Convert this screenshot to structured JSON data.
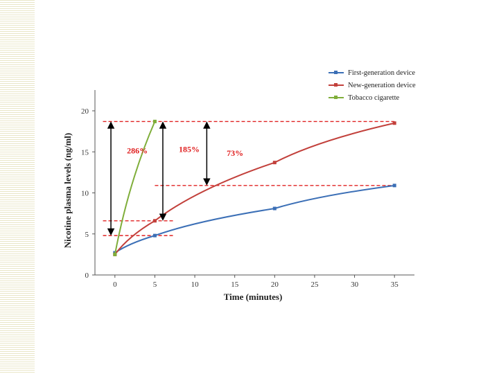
{
  "colors": {
    "first": "#3b6fb6",
    "new": "#c2403b",
    "tobacco": "#7fae3a",
    "annotation": "#e02020",
    "reference": "#e02020",
    "arrow": "#000000",
    "stripe": "#e9e6c7"
  },
  "chart_data": {
    "type": "line",
    "xlabel": "Time (minutes)",
    "ylabel": "Nicotine plasma levels (ng/ml)",
    "xlim": [
      -2.5,
      37.5
    ],
    "ylim": [
      0,
      20
    ],
    "xticks": [
      0,
      5,
      10,
      15,
      20,
      25,
      30,
      35
    ],
    "yticks": [
      0,
      5,
      10,
      15,
      20
    ],
    "grid": false,
    "legend_position": "top-right",
    "series": [
      {
        "name": "First-generation device",
        "color": "#3b6fb6",
        "x": [
          0,
          5,
          20,
          35
        ],
        "y": [
          2.7,
          4.8,
          8.1,
          10.9
        ]
      },
      {
        "name": "New-generation device",
        "color": "#c2403b",
        "x": [
          0,
          5,
          20,
          35
        ],
        "y": [
          2.5,
          6.6,
          13.7,
          18.5
        ]
      },
      {
        "name": "Tobacco cigarette",
        "color": "#7fae3a",
        "x": [
          0,
          5
        ],
        "y": [
          2.5,
          18.7
        ]
      }
    ],
    "reference_lines": [
      {
        "y": 18.7,
        "x_from": -1.5,
        "x_to": 35
      },
      {
        "y": 10.9,
        "x_from": 5,
        "x_to": 35
      },
      {
        "y": 6.6,
        "x_from": -1.5,
        "x_to": 7.5
      },
      {
        "y": 4.8,
        "x_from": -1.5,
        "x_to": 7.5
      }
    ],
    "annotations": [
      {
        "text": "286%",
        "x_arrow": -0.5,
        "y_top": 18.7,
        "y_bottom": 4.8,
        "label_x": 1.5,
        "label_y": 14.8
      },
      {
        "text": "185%",
        "x_arrow": 6.0,
        "y_top": 18.7,
        "y_bottom": 6.6,
        "label_x": 8.0,
        "label_y": 15.0
      },
      {
        "text": "73%",
        "x_arrow": 11.5,
        "y_top": 18.7,
        "y_bottom": 10.9,
        "label_x": 14.0,
        "label_y": 14.5
      }
    ]
  }
}
